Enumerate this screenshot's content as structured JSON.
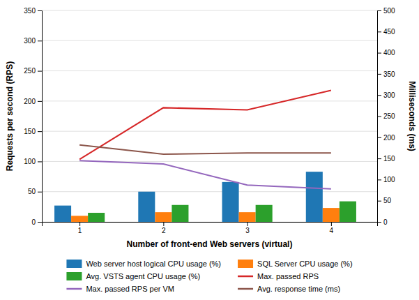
{
  "chart_data": {
    "type": "bar",
    "x": [
      1,
      2,
      3,
      4
    ],
    "xlabel": "Number of front-end Web servers (virtual)",
    "ylabel": "Requests per second (RPS)",
    "y2label": "Milliseconds (ms)",
    "xlim": [
      0.55,
      4.55
    ],
    "xticks": [
      1,
      2,
      3,
      4
    ],
    "ylim": [
      0,
      350
    ],
    "yticks": [
      0,
      50,
      100,
      150,
      200,
      250,
      300,
      350
    ],
    "y2lim": [
      0,
      500
    ],
    "y2ticks": [
      0,
      50,
      100,
      150,
      200,
      250,
      300,
      350,
      400,
      450,
      500
    ],
    "grid": true,
    "legend": "bottom",
    "series": [
      {
        "name": "Web server host logical CPU usage (%)",
        "type": "bar",
        "values": [
          27,
          50,
          66,
          83
        ]
      },
      {
        "name": "SQL Server CPU usage (%)",
        "type": "bar",
        "values": [
          10,
          16,
          16,
          23
        ]
      },
      {
        "name": "Avg. VSTS agent CPU usage (%)",
        "type": "bar",
        "values": [
          15,
          28,
          28,
          34
        ]
      },
      {
        "name": "Max. passed RPS",
        "type": "line",
        "axis": "y2",
        "values": [
          148,
          270,
          265,
          311
        ]
      },
      {
        "name": "Max. passed RPS per VM",
        "type": "line",
        "axis": "y2",
        "values": [
          145,
          137,
          87,
          78
        ]
      },
      {
        "name": "Avg. response time (ms)",
        "type": "line",
        "axis": "y2",
        "values": [
          182,
          160,
          163,
          163
        ]
      }
    ]
  }
}
